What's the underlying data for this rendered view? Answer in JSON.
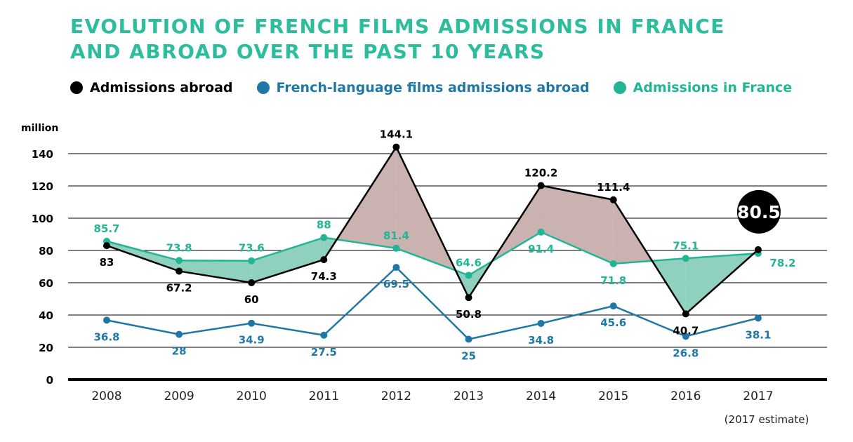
{
  "chart_data": {
    "type": "line",
    "title": "EVOLUTION OF FRENCH FILMS ADMISSIONS IN FRANCE AND ABROAD OVER THE PAST 10 YEARS",
    "title_lines": [
      "EVOLUTION OF FRENCH FILMS ADMISSIONS IN FRANCE",
      "AND ABROAD OVER THE PAST 10 YEARS"
    ],
    "ylabel": "million",
    "xlabel": "",
    "footnote": "(2017 estimate)",
    "ylim": [
      0,
      150
    ],
    "yticks": [
      "0",
      "20",
      "40",
      "60",
      "80",
      "100",
      "120",
      "140"
    ],
    "ytick_values": [
      0,
      20,
      40,
      60,
      80,
      100,
      120,
      140
    ],
    "grid": true,
    "legend_position": "top",
    "categories": [
      "2008",
      "2009",
      "2010",
      "2011",
      "2012",
      "2013",
      "2014",
      "2015",
      "2016",
      "2017"
    ],
    "series": [
      {
        "name": "Admissions abroad",
        "color": "#000000",
        "values": [
          83,
          67.2,
          60,
          74.3,
          144.1,
          50.8,
          120.2,
          111.4,
          40.7,
          80.5
        ],
        "labels": [
          "83",
          "67.2",
          "60",
          "74.3",
          "144.1",
          "50.8",
          "120.2",
          "111.4",
          "40.7",
          "80.5"
        ],
        "label_pos": [
          "below",
          "below",
          "below",
          "below",
          "above",
          "below",
          "above",
          "above",
          "below",
          "bubble"
        ]
      },
      {
        "name": "French-language films admissions abroad",
        "color": "#1f77a6",
        "values": [
          36.8,
          28,
          34.9,
          27.5,
          69.5,
          25,
          34.8,
          45.6,
          26.8,
          38.1
        ],
        "labels": [
          "36.8",
          "28",
          "34.9",
          "27.5",
          "69.5",
          "25",
          "34.8",
          "45.6",
          "26.8",
          "38.1"
        ],
        "label_pos": [
          "below",
          "below",
          "below",
          "below",
          "below",
          "below",
          "below",
          "below",
          "below",
          "below"
        ]
      },
      {
        "name": "Admissions in France",
        "color": "#22b595",
        "values": [
          85.7,
          73.8,
          73.6,
          88,
          81.4,
          64.6,
          91.4,
          71.8,
          75.1,
          78.2
        ],
        "labels": [
          "85.7",
          "73.8",
          "73.6",
          "88",
          "81.4",
          "64.6",
          "91.4",
          "71.8",
          "75.1",
          "78.2"
        ],
        "label_pos": [
          "above",
          "above",
          "above",
          "above",
          "above",
          "above",
          "below",
          "below",
          "above",
          "below-right"
        ]
      }
    ],
    "fill_colors": {
      "france_higher": "#8fd0bf",
      "abroad_higher": "#c9b2b0"
    }
  }
}
